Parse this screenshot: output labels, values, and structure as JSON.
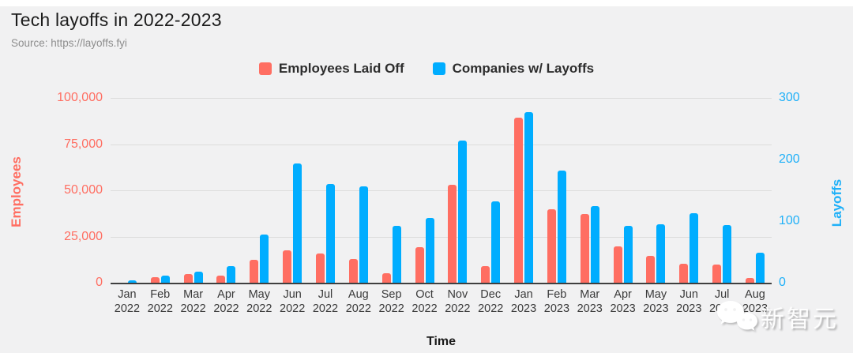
{
  "header": {
    "title": "Tech layoffs in 2022-2023",
    "source": "Source: https://layoffs.fyi"
  },
  "legend": {
    "items": [
      {
        "label": "Employees Laid Off",
        "color": "#FF6E62"
      },
      {
        "label": "Companies w/ Layoffs",
        "color": "#00ADFF"
      }
    ]
  },
  "axes": {
    "left": {
      "title": "Employees",
      "color": "#FF6E62",
      "max": 100000,
      "ticks": [
        {
          "value": 0,
          "label": "0"
        },
        {
          "value": 25000,
          "label": "25,000"
        },
        {
          "value": 50000,
          "label": "50,000"
        },
        {
          "value": 75000,
          "label": "75,000"
        },
        {
          "value": 100000,
          "label": "100,000"
        }
      ]
    },
    "right": {
      "title": "Layoffs",
      "color": "#1FB0F8",
      "max": 300,
      "ticks": [
        {
          "value": 0,
          "label": "0"
        },
        {
          "value": 100,
          "label": "100"
        },
        {
          "value": 200,
          "label": "200"
        },
        {
          "value": 300,
          "label": "300"
        }
      ]
    },
    "x": {
      "title": "Time"
    }
  },
  "watermark": {
    "text": "新智元",
    "icon": "wechat-bubbles-icon"
  },
  "chart_data": {
    "type": "bar",
    "title": "Tech layoffs in 2022-2023",
    "xlabel": "Time",
    "grid": true,
    "legend_position": "top",
    "categories": [
      "Jan 2022",
      "Feb 2022",
      "Mar 2022",
      "Apr 2022",
      "May 2022",
      "Jun 2022",
      "Jul 2022",
      "Aug 2022",
      "Sep 2022",
      "Oct 2022",
      "Nov 2022",
      "Dec 2022",
      "Jan 2023",
      "Feb 2023",
      "Mar 2023",
      "Apr 2023",
      "May 2023",
      "Jun 2023",
      "Jul 2023",
      "Aug 2023"
    ],
    "series": [
      {
        "name": "Employees Laid Off",
        "axis": "left",
        "color": "#FF6E62",
        "ylim": [
          0,
          100000
        ],
        "values": [
          510,
          3600,
          5300,
          4200,
          12800,
          17900,
          16200,
          13300,
          5600,
          19800,
          53600,
          9600,
          89700,
          40300,
          37800,
          20200,
          14900,
          10700,
          10300,
          3100
        ]
      },
      {
        "name": "Companies w/ Layoffs",
        "axis": "right",
        "color": "#00ADFF",
        "ylim": [
          0,
          300
        ],
        "values": [
          5,
          13,
          19,
          28,
          79,
          195,
          162,
          158,
          94,
          107,
          232,
          133,
          278,
          183,
          126,
          94,
          96,
          114,
          95,
          50
        ]
      }
    ]
  }
}
